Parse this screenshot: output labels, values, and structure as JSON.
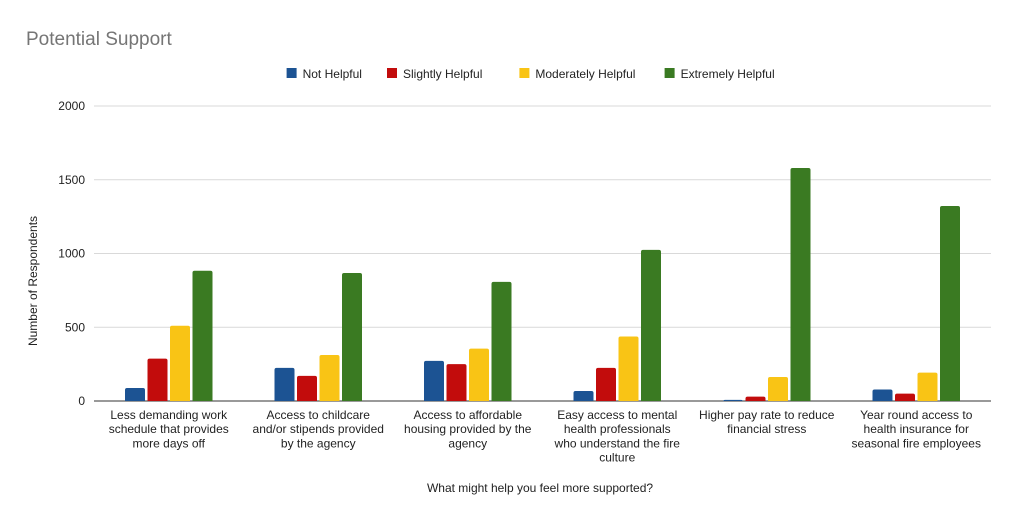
{
  "chart_data": {
    "type": "bar",
    "title": "Potential Support",
    "xlabel": "What might help you feel more supported?",
    "ylabel": "Number of Respondents",
    "ylim": [
      0,
      2000
    ],
    "yticks": [
      0,
      500,
      1000,
      1500,
      2000
    ],
    "grid": true,
    "legend_position": "top",
    "categories": [
      [
        "Less demanding work",
        "schedule that provides",
        "more days off"
      ],
      [
        "Access to childcare",
        "and/or stipends provided",
        "by the agency"
      ],
      [
        "Access to affordable",
        "housing provided by the",
        "agency"
      ],
      [
        "Easy access to mental",
        "health professionals",
        "who understand the fire",
        "culture"
      ],
      [
        "Higher pay rate to reduce",
        "financial stress"
      ],
      [
        "Year round access to",
        "health insurance for",
        "seasonal fire employees"
      ]
    ],
    "series": [
      {
        "name": "Not Helpful",
        "color": "#1c5393",
        "values": [
          88,
          225,
          272,
          68,
          8,
          78
        ]
      },
      {
        "name": "Slightly Helpful",
        "color": "#c20c0c",
        "values": [
          287,
          170,
          250,
          225,
          30,
          50
        ]
      },
      {
        "name": "Moderately Helpful",
        "color": "#f9c415",
        "values": [
          510,
          312,
          355,
          437,
          163,
          192
        ]
      },
      {
        "name": "Extremely Helpful",
        "color": "#3a7a22",
        "values": [
          883,
          868,
          808,
          1025,
          1580,
          1322
        ]
      }
    ]
  }
}
